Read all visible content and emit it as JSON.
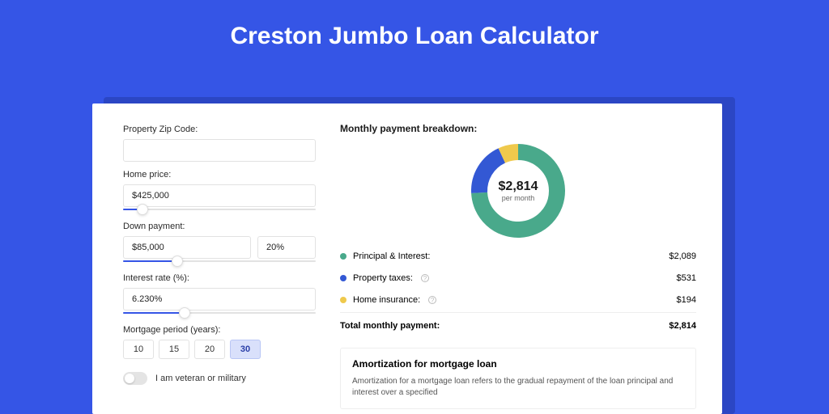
{
  "page": {
    "title": "Creston Jumbo Loan Calculator",
    "background_color": "#3555e6",
    "panel_shadow_color": "#2b46c4"
  },
  "form": {
    "zip": {
      "label": "Property Zip Code:",
      "value": ""
    },
    "home_price": {
      "label": "Home price:",
      "value": "$425,000",
      "slider_pct": 10
    },
    "down_payment": {
      "label": "Down payment:",
      "amount": "$85,000",
      "pct": "20%",
      "slider_pct": 28
    },
    "interest_rate": {
      "label": "Interest rate (%):",
      "value": "6.230%",
      "slider_pct": 32
    },
    "mortgage_period": {
      "label": "Mortgage period (years):",
      "options": [
        "10",
        "15",
        "20",
        "30"
      ],
      "selected": "30"
    },
    "veteran": {
      "label": "I am veteran or military",
      "checked": false
    }
  },
  "breakdown": {
    "title": "Monthly payment breakdown:",
    "donut": {
      "type": "donut",
      "center_amount": "$2,814",
      "center_sub": "per month",
      "slices": [
        {
          "label": "Principal & Interest",
          "value": 2089,
          "color": "#49a98b",
          "pct": 74.2
        },
        {
          "label": "Property taxes",
          "value": 531,
          "color": "#3358d4",
          "pct": 18.9
        },
        {
          "label": "Home insurance",
          "value": 194,
          "color": "#efc94c",
          "pct": 6.9
        }
      ],
      "stroke_width": 20,
      "background_color": "#ffffff"
    },
    "rows": [
      {
        "label": "Principal & Interest:",
        "amount": "$2,089",
        "color": "#49a98b",
        "info": false
      },
      {
        "label": "Property taxes:",
        "amount": "$531",
        "color": "#3358d4",
        "info": true
      },
      {
        "label": "Home insurance:",
        "amount": "$194",
        "color": "#efc94c",
        "info": true
      }
    ],
    "total": {
      "label": "Total monthly payment:",
      "amount": "$2,814"
    }
  },
  "amortization": {
    "title": "Amortization for mortgage loan",
    "text": "Amortization for a mortgage loan refers to the gradual repayment of the loan principal and interest over a specified"
  }
}
